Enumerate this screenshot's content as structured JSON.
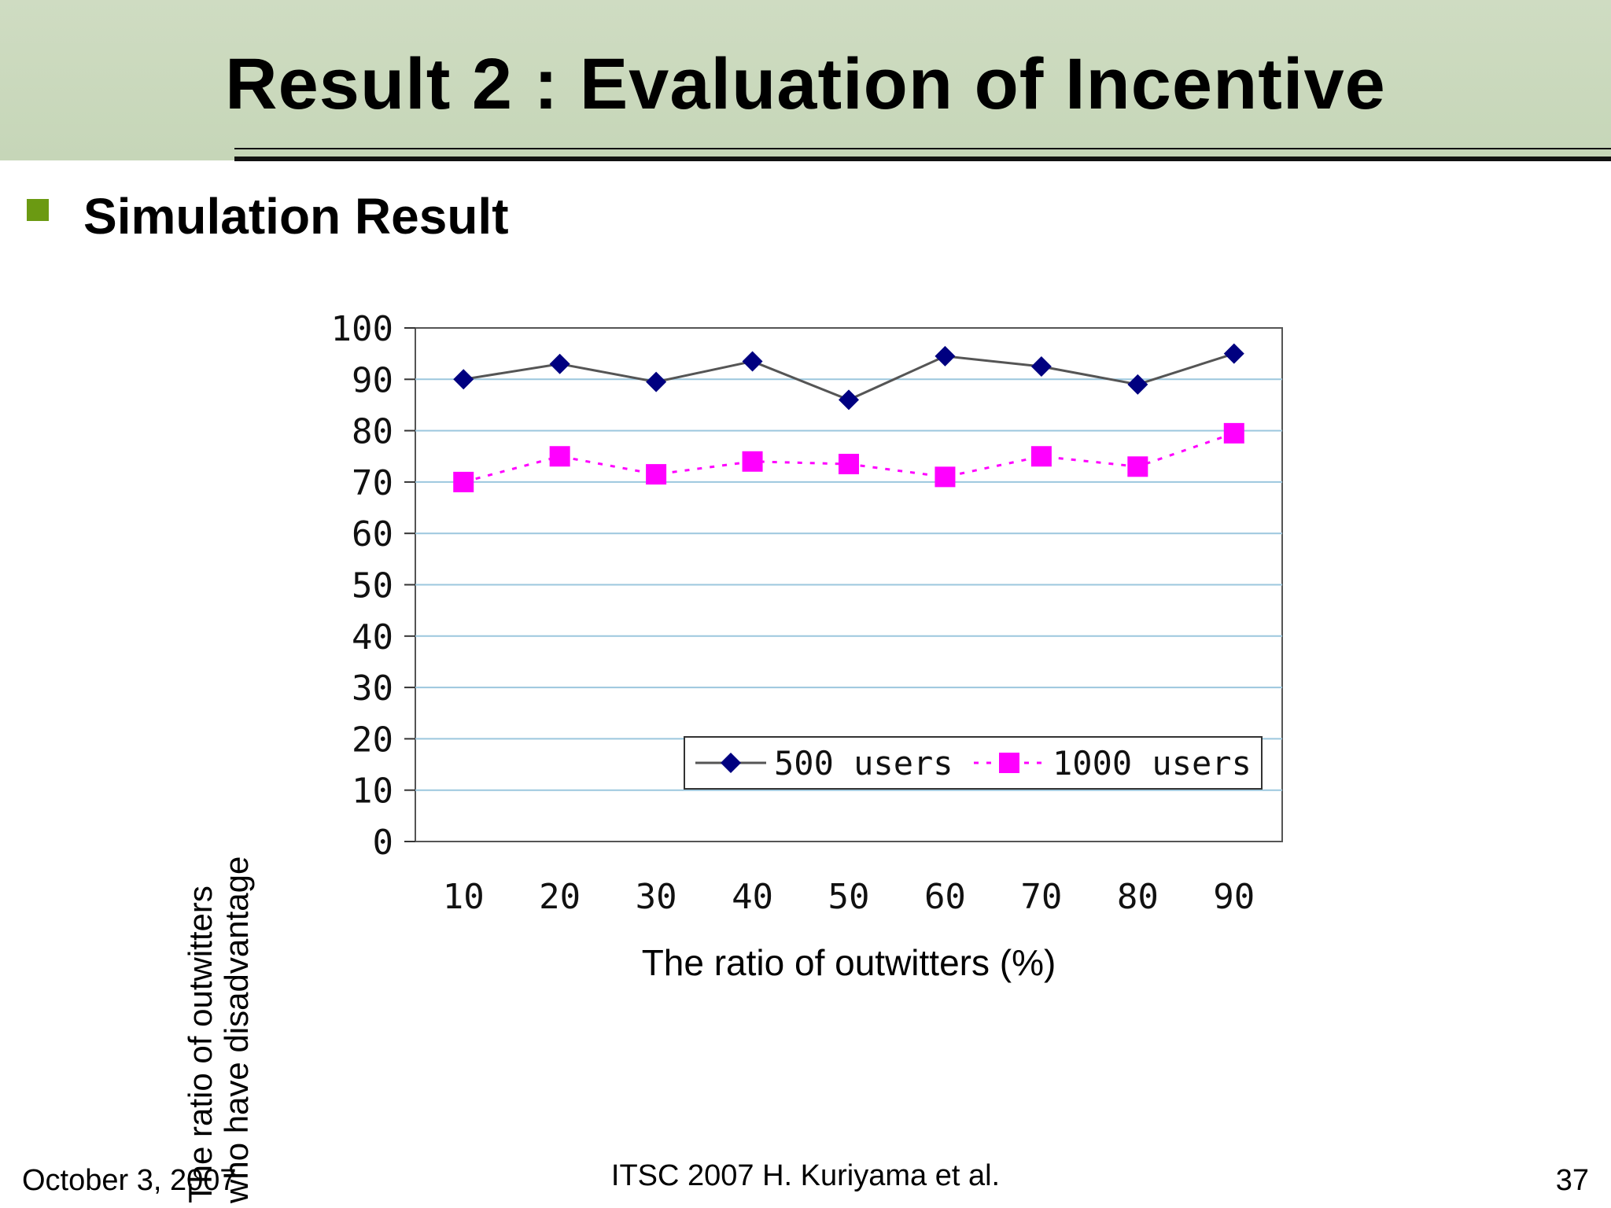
{
  "slide": {
    "title": "Result 2 : Evaluation of Incentive",
    "subtitle": "Simulation Result",
    "footer_left": "October 3, 2007",
    "footer_center": "ITSC 2007 H. Kuriyama et al.",
    "footer_right": "37"
  },
  "colors": {
    "header_band": "#cbd9bd",
    "bullet": "#6b9a12",
    "gridline": "#9cc7de",
    "series_500": "#000080",
    "series_1000": "#ff00ff"
  },
  "chart_data": {
    "type": "line",
    "title": "",
    "xlabel": "The ratio of outwitters (%)",
    "ylabel_lines": [
      "The ratio of outwitters",
      "who have disadvantage"
    ],
    "categories": [
      "10",
      "20",
      "30",
      "40",
      "50",
      "60",
      "70",
      "80",
      "90"
    ],
    "y_ticks": [
      "0",
      "10",
      "20",
      "30",
      "40",
      "50",
      "60",
      "70",
      "80",
      "90",
      "100"
    ],
    "ylim": [
      0,
      100
    ],
    "grid": true,
    "legend_position": "bottom-right",
    "series": [
      {
        "name": "500 users",
        "marker": "diamond",
        "line": "solid",
        "values": [
          90,
          93,
          89.5,
          93.5,
          86,
          94.5,
          92.5,
          89,
          95
        ]
      },
      {
        "name": "1000 users",
        "marker": "square",
        "line": "dotted",
        "values": [
          70,
          75,
          71.5,
          74,
          73.5,
          71,
          75,
          73,
          79.5
        ]
      }
    ]
  }
}
